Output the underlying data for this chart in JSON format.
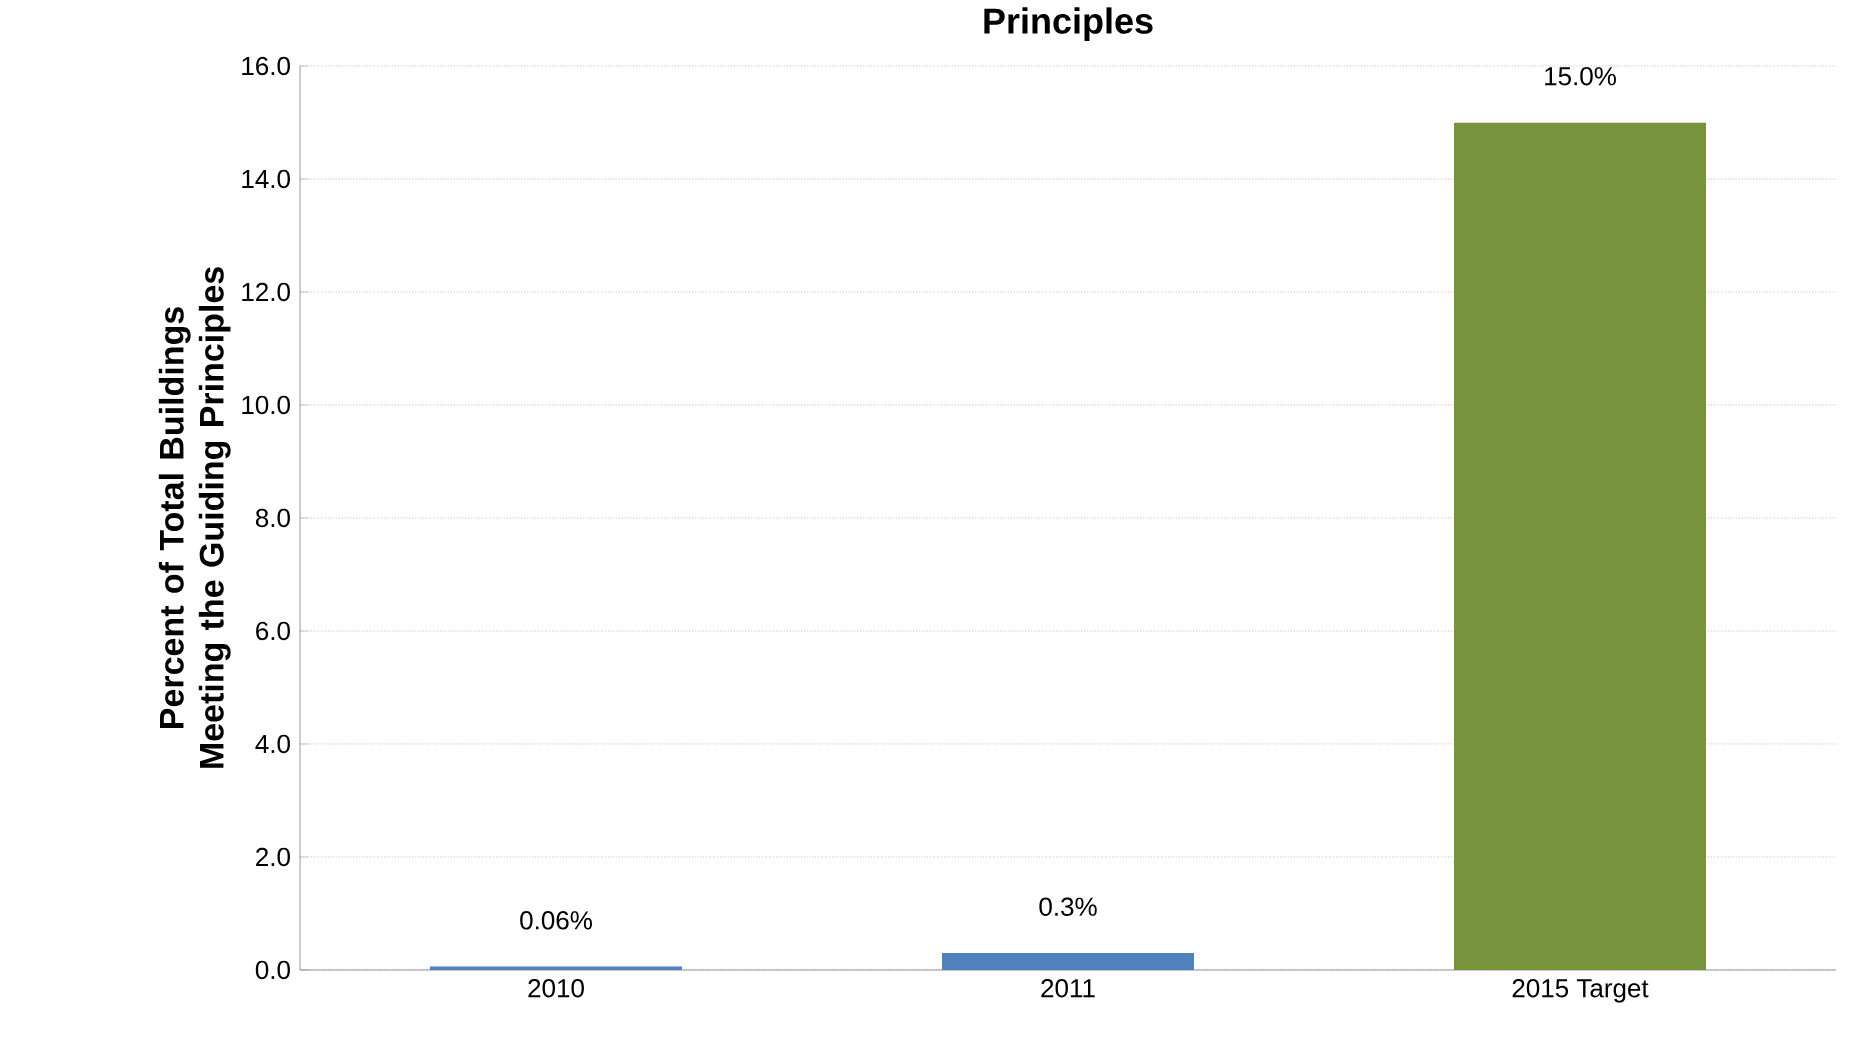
{
  "chart_data": {
    "type": "bar",
    "title": "Principles",
    "ylabel": "Percent of Total Buildings Meeting the Guiding Principles",
    "categories": [
      "2010",
      "2011",
      "2015 Target"
    ],
    "values": [
      0.06,
      0.3,
      15.0
    ],
    "colors": [
      "#4f81bd",
      "#4f81bd",
      "#77933c"
    ],
    "value_labels": [
      "0.06%",
      "0.3%",
      "15.0%"
    ],
    "ylim": [
      0,
      16
    ],
    "yticks": [
      {
        "value": 0,
        "label": "0.0"
      },
      {
        "value": 2,
        "label": "2.0"
      },
      {
        "value": 4,
        "label": "4.0"
      },
      {
        "value": 6,
        "label": "6.0"
      },
      {
        "value": 8,
        "label": "8.0"
      },
      {
        "value": 10,
        "label": "10.0"
      },
      {
        "value": 12,
        "label": "12.0"
      },
      {
        "value": 14,
        "label": "14.0"
      },
      {
        "value": 16,
        "label": "16.0"
      }
    ],
    "grid": "y"
  }
}
